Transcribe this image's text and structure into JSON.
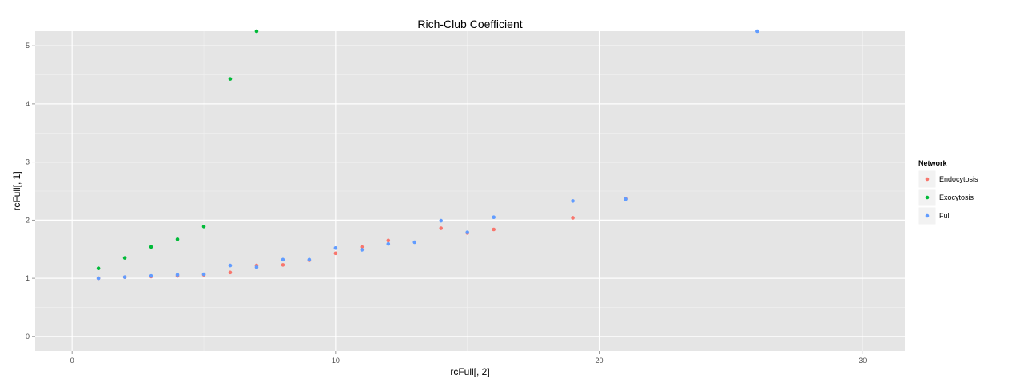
{
  "chart_data": {
    "type": "scatter",
    "title": "Rich-Club Coefficient",
    "xlabel": "rcFull[, 2]",
    "ylabel": "rcFull[, 1]",
    "xlim": [
      -1.4,
      31.6
    ],
    "ylim": [
      -0.25,
      5.25
    ],
    "x_ticks": [
      0,
      10,
      20,
      30
    ],
    "y_ticks": [
      0,
      1,
      2,
      3,
      4,
      5
    ],
    "grid": true,
    "background": "#e5e5e5",
    "legend": {
      "title": "Network",
      "position": "right"
    },
    "series": [
      {
        "name": "Endocytosis",
        "color": "#f8766d",
        "points": [
          [
            1,
            1.0
          ],
          [
            2,
            1.02
          ],
          [
            3,
            1.03
          ],
          [
            4,
            1.04
          ],
          [
            5,
            1.06
          ],
          [
            6,
            1.1
          ],
          [
            7,
            1.22
          ],
          [
            8,
            1.23
          ],
          [
            9,
            1.31
          ],
          [
            10,
            1.43
          ],
          [
            11,
            1.54
          ],
          [
            12,
            1.65
          ],
          [
            14,
            1.86
          ],
          [
            15,
            1.78
          ],
          [
            16,
            1.84
          ],
          [
            19,
            2.04
          ],
          [
            21,
            2.37
          ]
        ]
      },
      {
        "name": "Exocytosis",
        "color": "#00ba38",
        "points": [
          [
            1,
            1.17
          ],
          [
            2,
            1.35
          ],
          [
            3,
            1.54
          ],
          [
            4,
            1.67
          ],
          [
            5,
            1.89
          ],
          [
            6,
            4.43
          ],
          [
            7,
            5.25
          ]
        ]
      },
      {
        "name": "Full",
        "color": "#619cff",
        "points": [
          [
            1,
            1.0
          ],
          [
            2,
            1.02
          ],
          [
            3,
            1.04
          ],
          [
            4,
            1.06
          ],
          [
            5,
            1.07
          ],
          [
            6,
            1.22
          ],
          [
            7,
            1.19
          ],
          [
            8,
            1.32
          ],
          [
            9,
            1.32
          ],
          [
            10,
            1.52
          ],
          [
            11,
            1.49
          ],
          [
            12,
            1.59
          ],
          [
            13,
            1.62
          ],
          [
            14,
            1.99
          ],
          [
            15,
            1.79
          ],
          [
            16,
            2.05
          ],
          [
            19,
            2.33
          ],
          [
            21,
            2.36
          ],
          [
            26,
            5.25
          ]
        ]
      }
    ]
  }
}
